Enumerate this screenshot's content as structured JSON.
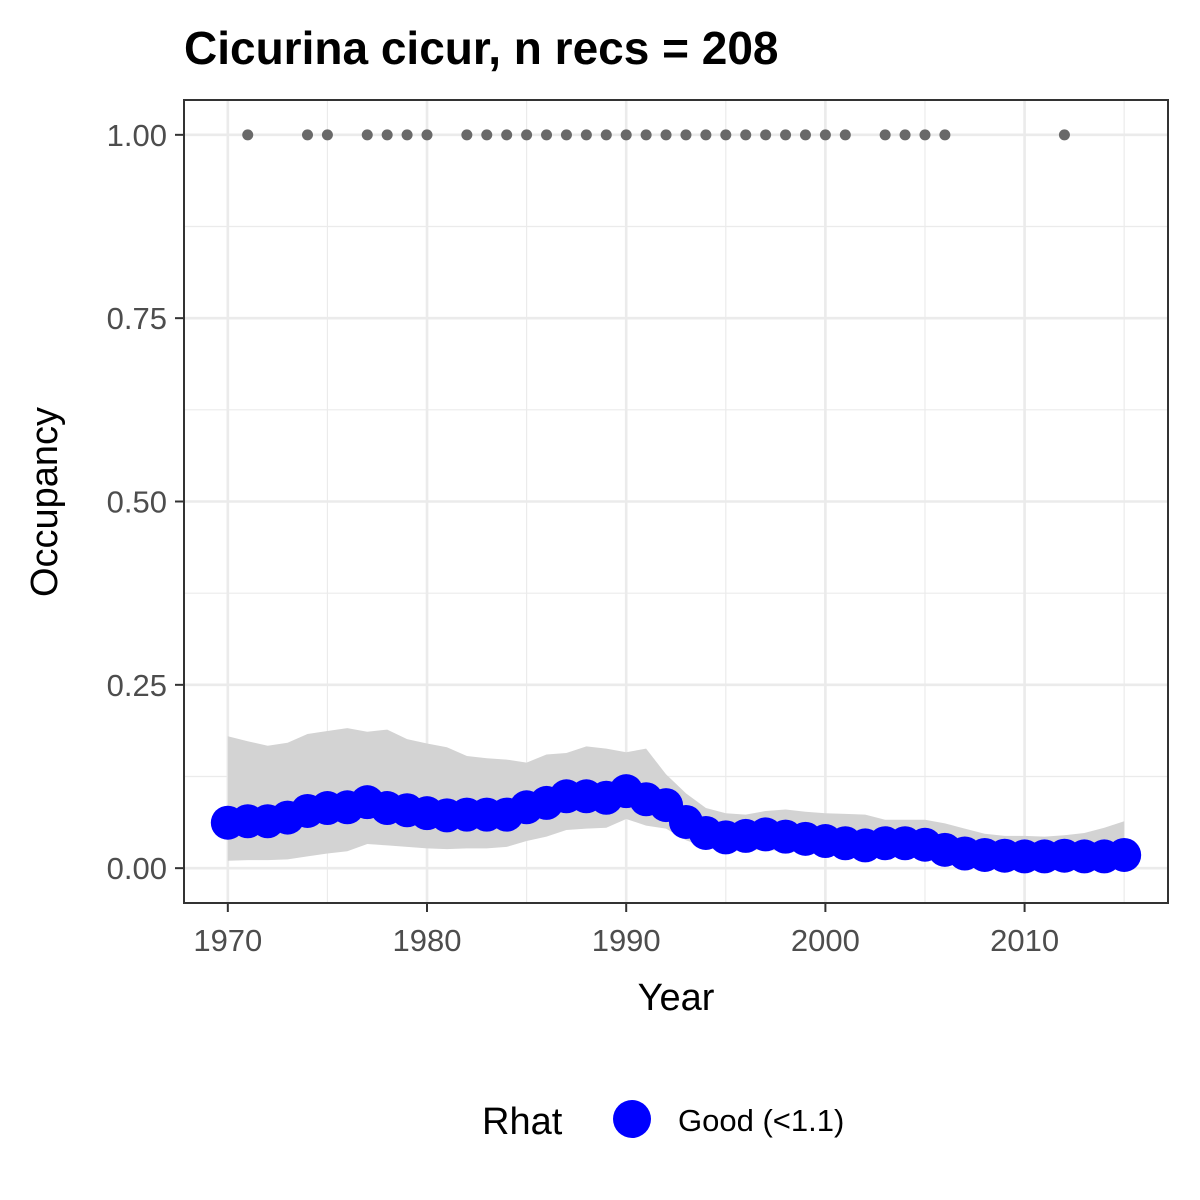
{
  "chart_data": {
    "type": "line",
    "title": "Cicurina cicur, n recs = 208",
    "xlabel": "Year",
    "ylabel": "Occupancy",
    "xlim": [
      1967.9,
      1017.6
    ],
    "ylim": [
      -0.0475,
      1.0475
    ],
    "x_ticks": [
      1970,
      1980,
      1990,
      2000,
      2010
    ],
    "x_tick_labels": [
      "1970",
      "1980",
      "1990",
      "2000",
      "2010"
    ],
    "y_ticks": [
      0,
      0.25,
      0.5,
      0.75,
      1
    ],
    "y_tick_labels": [
      "0.00",
      "0.25",
      "0.50",
      "0.75",
      "1.00"
    ],
    "grid": true,
    "series": [
      {
        "name": "Good (<1.1)",
        "color": "#0000ff",
        "x": [
          1970,
          1971,
          1972,
          1973,
          1974,
          1975,
          1976,
          1977,
          1978,
          1979,
          1980,
          1981,
          1982,
          1983,
          1984,
          1985,
          1986,
          1987,
          1988,
          1989,
          1990,
          1991,
          1992,
          1993,
          1994,
          1995,
          1996,
          1997,
          1998,
          1999,
          2000,
          2001,
          2002,
          2003,
          2004,
          2005,
          2006,
          2007,
          2008,
          2009,
          2010,
          2011,
          2012,
          2013,
          2014,
          2015
        ],
        "y": [
          0.062,
          0.064,
          0.064,
          0.069,
          0.078,
          0.082,
          0.083,
          0.09,
          0.082,
          0.079,
          0.075,
          0.072,
          0.073,
          0.073,
          0.073,
          0.083,
          0.089,
          0.098,
          0.098,
          0.096,
          0.105,
          0.094,
          0.086,
          0.063,
          0.048,
          0.042,
          0.044,
          0.046,
          0.043,
          0.04,
          0.037,
          0.034,
          0.031,
          0.034,
          0.034,
          0.032,
          0.025,
          0.02,
          0.018,
          0.017,
          0.016,
          0.016,
          0.017,
          0.016,
          0.016,
          0.018
        ],
        "lower": [
          0.01,
          0.011,
          0.011,
          0.012,
          0.016,
          0.02,
          0.023,
          0.033,
          0.031,
          0.029,
          0.027,
          0.026,
          0.027,
          0.027,
          0.029,
          0.037,
          0.043,
          0.052,
          0.054,
          0.055,
          0.067,
          0.058,
          0.054,
          0.038,
          0.028,
          0.024,
          0.024,
          0.025,
          0.023,
          0.021,
          0.019,
          0.018,
          0.016,
          0.017,
          0.017,
          0.016,
          0.012,
          0.009,
          0.008,
          0.007,
          0.006,
          0.006,
          0.006,
          0.006,
          0.005,
          0.005
        ],
        "upper": [
          0.18,
          0.173,
          0.167,
          0.171,
          0.183,
          0.187,
          0.191,
          0.186,
          0.189,
          0.176,
          0.17,
          0.165,
          0.153,
          0.15,
          0.148,
          0.144,
          0.155,
          0.157,
          0.166,
          0.163,
          0.158,
          0.163,
          0.128,
          0.102,
          0.082,
          0.075,
          0.073,
          0.078,
          0.08,
          0.077,
          0.075,
          0.074,
          0.073,
          0.066,
          0.066,
          0.066,
          0.061,
          0.054,
          0.047,
          0.044,
          0.044,
          0.043,
          0.045,
          0.048,
          0.055,
          0.064
        ]
      }
    ],
    "records": {
      "y_value": 1.0,
      "color": "#696969",
      "years": [
        1971,
        1974,
        1975,
        1977,
        1978,
        1979,
        1980,
        1982,
        1983,
        1984,
        1985,
        1986,
        1987,
        1988,
        1989,
        1990,
        1991,
        1992,
        1993,
        1994,
        1995,
        1996,
        1997,
        1998,
        1999,
        2000,
        2001,
        2003,
        2004,
        2005,
        2006,
        2012
      ]
    },
    "ribbon_color": "#d3d3d3",
    "legend": {
      "title": "Rhat",
      "entries": [
        "Good (<1.1)"
      ],
      "position": "bottom"
    }
  }
}
